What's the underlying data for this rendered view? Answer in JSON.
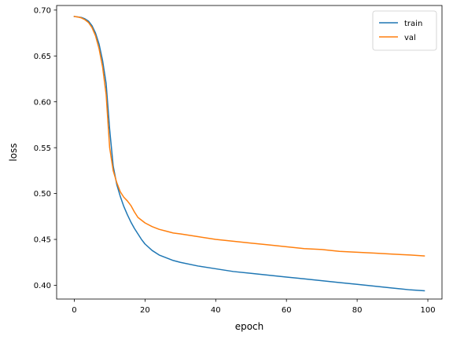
{
  "chart_data": {
    "type": "line",
    "title": "",
    "xlabel": "epoch",
    "ylabel": "loss",
    "xlim": [
      -5,
      104
    ],
    "ylim": [
      0.385,
      0.705
    ],
    "x_ticks": [
      0,
      20,
      40,
      60,
      80,
      100
    ],
    "y_ticks": [
      0.4,
      0.45,
      0.5,
      0.55,
      0.6,
      0.65,
      0.7
    ],
    "x_tick_labels": [
      "0",
      "20",
      "40",
      "60",
      "80",
      "100"
    ],
    "y_tick_labels": [
      "0.40",
      "0.45",
      "0.50",
      "0.55",
      "0.60",
      "0.65",
      "0.70"
    ],
    "grid": false,
    "legend_position": "top-right",
    "series": [
      {
        "name": "train",
        "color": "#1f77b4",
        "x": [
          0,
          1,
          2,
          3,
          4,
          5,
          6,
          7,
          8,
          9,
          10,
          11,
          12,
          13,
          14,
          15,
          16,
          17,
          18,
          19,
          20,
          22,
          24,
          26,
          28,
          30,
          35,
          40,
          45,
          50,
          55,
          60,
          65,
          70,
          75,
          80,
          85,
          90,
          95,
          99
        ],
        "y": [
          0.693,
          0.6925,
          0.692,
          0.6905,
          0.688,
          0.683,
          0.675,
          0.663,
          0.645,
          0.62,
          0.57,
          0.53,
          0.51,
          0.497,
          0.486,
          0.477,
          0.469,
          0.462,
          0.456,
          0.45,
          0.445,
          0.438,
          0.433,
          0.43,
          0.427,
          0.425,
          0.421,
          0.418,
          0.415,
          0.413,
          0.411,
          0.409,
          0.407,
          0.405,
          0.403,
          0.401,
          0.399,
          0.397,
          0.395,
          0.394
        ]
      },
      {
        "name": "val",
        "color": "#ff7f0e",
        "x": [
          0,
          1,
          2,
          3,
          4,
          5,
          6,
          7,
          8,
          9,
          10,
          11,
          12,
          13,
          14,
          15,
          16,
          17,
          18,
          19,
          20,
          22,
          24,
          26,
          28,
          30,
          35,
          40,
          45,
          50,
          55,
          60,
          65,
          70,
          75,
          80,
          85,
          90,
          95,
          99
        ],
        "y": [
          0.693,
          0.6925,
          0.6915,
          0.6895,
          0.6865,
          0.681,
          0.672,
          0.658,
          0.638,
          0.608,
          0.55,
          0.525,
          0.512,
          0.502,
          0.496,
          0.492,
          0.487,
          0.48,
          0.474,
          0.471,
          0.468,
          0.464,
          0.461,
          0.459,
          0.457,
          0.456,
          0.453,
          0.45,
          0.448,
          0.446,
          0.444,
          0.442,
          0.44,
          0.439,
          0.437,
          0.436,
          0.435,
          0.434,
          0.433,
          0.432
        ]
      }
    ]
  }
}
